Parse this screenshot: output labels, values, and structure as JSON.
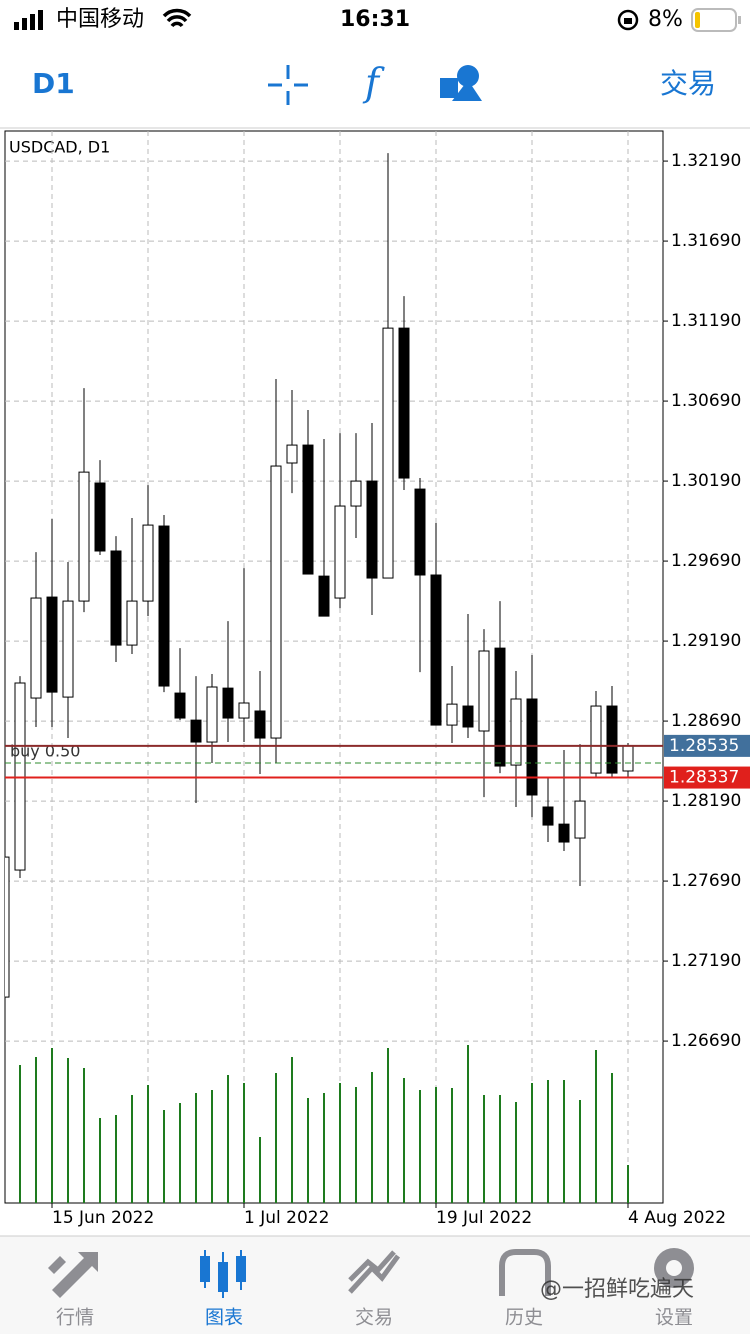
{
  "status_bar": {
    "carrier": "中国移动",
    "time": "16:31",
    "battery": "8%"
  },
  "toolbar": {
    "timeframe": "D1",
    "trade": "交易"
  },
  "chart_data": {
    "type": "candlestick",
    "title": "USDCAD, D1",
    "categories": [
      null,
      null,
      null,
      "15 Jun 2022",
      null,
      null,
      null,
      null,
      null,
      null,
      null,
      null,
      null,
      null,
      null,
      "1 Jul 2022",
      null,
      null,
      null,
      null,
      null,
      null,
      null,
      null,
      null,
      null,
      null,
      "19 Jul 2022",
      null,
      null,
      null,
      null,
      null,
      null,
      null,
      null,
      null,
      null,
      null,
      "4 Aug 2022"
    ],
    "open": [
      1.26965,
      1.27759,
      1.28834,
      1.29465,
      1.2884,
      1.2944,
      1.30178,
      1.29753,
      1.29165,
      1.2944,
      1.29909,
      1.28865,
      1.28696,
      1.28559,
      1.28896,
      1.28709,
      1.28753,
      1.28584,
      1.30303,
      1.30415,
      1.29596,
      1.29459,
      1.30034,
      1.3019,
      1.29584,
      1.31146,
      1.3014,
      1.29603,
      1.28665,
      1.28784,
      1.28628,
      1.29146,
      1.28415,
      1.28828,
      1.28153,
      1.28046,
      1.27959,
      1.28365,
      1.28784,
      1.28378
    ],
    "high": [
      1.2784,
      1.28971,
      1.29746,
      1.29953,
      1.29684,
      1.30771,
      1.30321,
      1.29846,
      1.29959,
      1.30165,
      1.29978,
      1.29146,
      1.28971,
      1.28984,
      1.29315,
      1.29646,
      1.29003,
      1.30828,
      1.30759,
      1.30634,
      1.30453,
      1.3049,
      1.3049,
      1.30553,
      1.3224,
      1.31346,
      1.30209,
      1.29928,
      1.29034,
      1.29359,
      1.29265,
      1.2944,
      1.29003,
      1.29103,
      1.28334,
      1.28509,
      1.28546,
      1.28878,
      1.28909,
      1.28553
    ],
    "low": [
      1.26965,
      1.27709,
      1.28653,
      1.28653,
      1.28584,
      1.29371,
      1.29728,
      1.29059,
      1.29109,
      1.29346,
      1.28871,
      1.28696,
      1.28178,
      1.28428,
      1.28559,
      1.28559,
      1.28359,
      1.28428,
      1.30115,
      1.29609,
      1.29346,
      1.29396,
      1.29834,
      1.29353,
      1.29584,
      1.30134,
      1.28996,
      1.28665,
      1.28553,
      1.28584,
      1.28215,
      1.28365,
      1.28153,
      1.2809,
      1.27934,
      1.27878,
      1.27659,
      1.2834,
      1.2834,
      1.2834
    ],
    "close": [
      1.2784,
      1.28928,
      1.29459,
      1.28871,
      1.2944,
      1.30246,
      1.29753,
      1.29165,
      1.2944,
      1.29915,
      1.28909,
      1.28709,
      1.28559,
      1.28903,
      1.28709,
      1.28803,
      1.28584,
      1.30284,
      1.30415,
      1.29609,
      1.29346,
      1.30034,
      1.3019,
      1.29584,
      1.31146,
      1.30209,
      1.29603,
      1.28665,
      1.28796,
      1.28653,
      1.29128,
      1.28409,
      1.28828,
      1.28228,
      1.2804,
      1.27934,
      1.2819,
      1.28784,
      1.28365,
      1.28535
    ],
    "volume": [
      null,
      138,
      146,
      155,
      145,
      135,
      85,
      88,
      108,
      118,
      93,
      100,
      110,
      113,
      128,
      120,
      66,
      130,
      146,
      105,
      110,
      120,
      116,
      131,
      155,
      125,
      113,
      116,
      115,
      158,
      108,
      108,
      101,
      120,
      123,
      123,
      103,
      153,
      130,
      38
    ],
    "ylim": [
      1.25678,
      1.32378
    ],
    "yticks": [
      {
        "value": 1.2669,
        "label": "1.26690"
      },
      {
        "value": 1.2719,
        "label": "1.27190"
      },
      {
        "value": 1.2769,
        "label": "1.27690"
      },
      {
        "value": 1.2819,
        "label": "1.28190"
      },
      {
        "value": 1.2869,
        "label": "1.28690"
      },
      {
        "value": 1.2919,
        "label": "1.29190"
      },
      {
        "value": 1.2969,
        "label": "1.29690"
      },
      {
        "value": 1.3019,
        "label": "1.30190"
      },
      {
        "value": 1.3069,
        "label": "1.30690"
      },
      {
        "value": 1.3119,
        "label": "1.31190"
      },
      {
        "value": 1.3169,
        "label": "1.31690"
      },
      {
        "value": 1.3219,
        "label": "1.32190"
      }
    ],
    "grid": true,
    "up_color": "#ffffff",
    "down_color": "#000000",
    "volume_color": "#1e7b1e",
    "bid": {
      "value": 1.28535,
      "color": "#41709c",
      "line_color": "#8b2b2b"
    },
    "ask": {
      "value": 1.28337,
      "color": "#e0201c",
      "line_color": "#e0201c"
    },
    "order": {
      "label": "buy 0.50",
      "price": 1.28428,
      "color": "#2e8b2e"
    }
  },
  "tab_bar": {
    "tabs": [
      "行情",
      "图表",
      "交易",
      "历史",
      "设置"
    ]
  },
  "watermark": "@一招鲜吃遍天"
}
